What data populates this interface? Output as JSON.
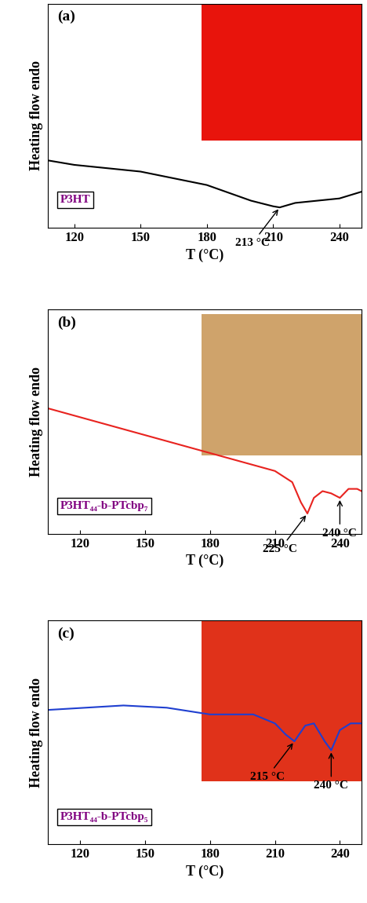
{
  "chart_data": [
    {
      "type": "line",
      "title": "(a)",
      "x_label": "T (°C)",
      "y_label": "Heating flow endo",
      "tick_labels": "x",
      "grid": false,
      "xlim": [
        108,
        250
      ],
      "xticks": [
        120,
        150,
        180,
        210,
        240
      ],
      "ylim": [
        0,
        1
      ],
      "series": [
        {
          "name": "P3HT",
          "color": "#000000",
          "x": [
            108,
            120,
            150,
            180,
            200,
            210,
            213,
            220,
            230,
            240,
            250
          ],
          "values": [
            0.3,
            0.28,
            0.25,
            0.19,
            0.12,
            0.095,
            0.09,
            0.11,
            0.12,
            0.13,
            0.16
          ]
        }
      ],
      "annotations": [
        {
          "text": "213 °C",
          "x": 213,
          "y": 0.09
        }
      ]
    },
    {
      "type": "line",
      "title": "(b)",
      "x_label": "T (°C)",
      "y_label": "Heating flow endo",
      "tick_labels": "x",
      "grid": false,
      "xlim": [
        105,
        250
      ],
      "xticks": [
        120,
        150,
        180,
        210,
        240
      ],
      "ylim": [
        0,
        1
      ],
      "series": [
        {
          "name": "P3HT₄₄-b-PTcbp₇",
          "color": "#e8231f",
          "x": [
            105,
            150,
            180,
            210,
            218,
            222,
            225,
            228,
            232,
            236,
            240,
            244,
            248,
            250
          ],
          "values": [
            0.56,
            0.44,
            0.36,
            0.28,
            0.23,
            0.14,
            0.09,
            0.16,
            0.19,
            0.18,
            0.16,
            0.2,
            0.2,
            0.19
          ]
        }
      ],
      "annotations": [
        {
          "text": "225 °C",
          "x": 225,
          "y": 0.09
        },
        {
          "text": "240 °C",
          "x": 240,
          "y": 0.16
        }
      ]
    },
    {
      "type": "line",
      "title": "(c)",
      "x_label": "T (°C)",
      "y_label": "Heating flow endo",
      "tick_labels": "x",
      "grid": false,
      "xlim": [
        105,
        250
      ],
      "xticks": [
        120,
        150,
        180,
        210,
        240
      ],
      "ylim": [
        0,
        1
      ],
      "series": [
        {
          "name": "P3HT₄₄-b-PTcbp₅",
          "color": "#1f3fd0",
          "x": [
            105,
            140,
            160,
            180,
            200,
            210,
            215,
            219,
            224,
            228,
            233,
            236,
            240,
            245,
            250
          ],
          "values": [
            0.6,
            0.62,
            0.61,
            0.58,
            0.58,
            0.54,
            0.49,
            0.46,
            0.53,
            0.54,
            0.46,
            0.42,
            0.51,
            0.54,
            0.54
          ]
        }
      ],
      "annotations": [
        {
          "text": "215 °C",
          "x": 219,
          "y": 0.46
        },
        {
          "text": "240 °C",
          "x": 236,
          "y": 0.42
        }
      ]
    }
  ]
}
